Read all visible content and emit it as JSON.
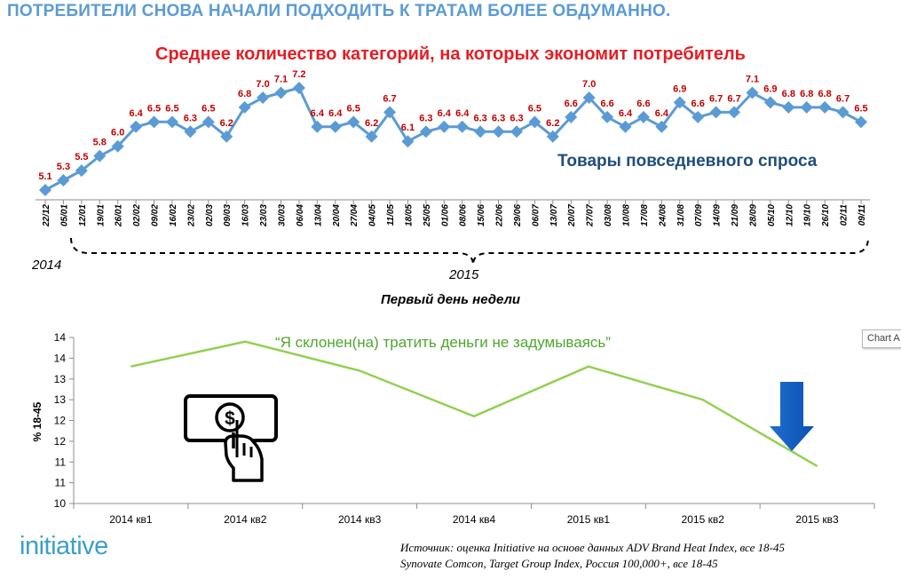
{
  "headline": "ПОТРЕБИТЕЛИ СНОВА НАЧАЛИ ПОДХОДИТЬ К ТРАТАМ БОЛЕЕ ОБДУМАННО.",
  "year_2014": "2014",
  "year_2015": "2015",
  "chart_tab": "Chart A",
  "logo": "initiative",
  "source_line1": "Источник: оценка Initiative на основе данных ADV Brand Heat Index, все 18-45",
  "source_line2": "Synovate Comcon, Target Group Index, Россия 100,000+, все 18-45",
  "icon": "hand-pressing-dollar-button-icon",
  "down_arrow": "down-arrow-icon",
  "chart_data": [
    {
      "type": "line",
      "title": "Среднее количество категорий, на которых экономит потребитель",
      "series_label": "Товары повседневного спроса",
      "xlabel": "Первый день недели",
      "ylabel": "",
      "color": "#5b9bd5",
      "label_color": "#c00000",
      "categories": [
        "22/12",
        "05/01",
        "12/01",
        "19/01",
        "26/01",
        "02/02",
        "09/02",
        "16/02",
        "23/02",
        "02/03",
        "09/03",
        "16/03",
        "23/03",
        "30/03",
        "06/04",
        "13/04",
        "20/04",
        "27/04",
        "04/05",
        "11/05",
        "18/05",
        "25/05",
        "01/06",
        "08/06",
        "15/06",
        "22/06",
        "29/06",
        "06/07",
        "13/07",
        "20/07",
        "27/07",
        "03/08",
        "10/08",
        "17/08",
        "24/08",
        "31/08",
        "07/09",
        "14/09",
        "21/09",
        "28/09",
        "05/10",
        "12/10",
        "19/10",
        "26/10",
        "02/11",
        "09/11"
      ],
      "series": [
        {
          "name": "Товары повседневного спроса",
          "values": [
            5.1,
            5.3,
            5.5,
            5.8,
            6.0,
            6.4,
            6.5,
            6.5,
            6.3,
            6.5,
            6.2,
            6.8,
            7.0,
            7.1,
            7.2,
            6.4,
            6.4,
            6.5,
            6.2,
            6.7,
            6.1,
            6.3,
            6.4,
            6.4,
            6.3,
            6.3,
            6.3,
            6.5,
            6.2,
            6.6,
            7.0,
            6.6,
            6.4,
            6.6,
            6.4,
            6.9,
            6.6,
            6.7,
            6.7,
            7.1,
            6.9,
            6.8,
            6.8,
            6.8,
            6.7,
            6.5
          ]
        }
      ],
      "ylim": [
        5.0,
        7.3
      ],
      "grid": false,
      "legend": "none"
    },
    {
      "type": "line",
      "title": "“Я склонен(на) тратить деньги не задумываясь”",
      "ylabel": "% 18-45",
      "xlabel": "",
      "color": "#92d050",
      "categories": [
        "2014 кв1",
        "2014 кв2",
        "2014 кв3",
        "2014 кв4",
        "2015 кв1",
        "2015 кв2",
        "2015 кв3"
      ],
      "series": [
        {
          "name": "",
          "values": [
            13.3,
            13.9,
            13.2,
            12.1,
            13.3,
            12.5,
            10.9
          ]
        }
      ],
      "y_ticks": [
        "14",
        "14",
        "13",
        "13",
        "12",
        "12",
        "11",
        "11",
        "10"
      ],
      "ylim": [
        10.0,
        14.0
      ],
      "grid": false,
      "legend": "none"
    }
  ]
}
